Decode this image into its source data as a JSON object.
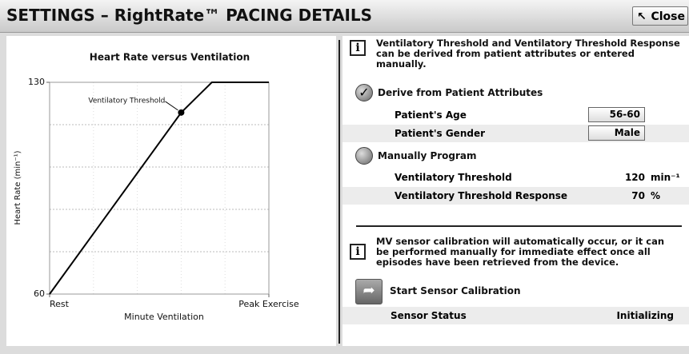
{
  "header": {
    "title": "SETTINGS – RightRate™ PACING DETAILS",
    "close": "Close"
  },
  "chart_data": {
    "type": "line",
    "title": "Heart Rate versus Ventilation",
    "y_label": "Heart Rate (min⁻¹)",
    "x_label": "Minute Ventilation",
    "annotation": "Ventilatory Threshold",
    "x": [
      0,
      60,
      74,
      100
    ],
    "series": [
      {
        "color": "#000000",
        "values": [
          60,
          120,
          130,
          130
        ]
      }
    ],
    "xlim": [
      0,
      100
    ],
    "xticks": [
      {
        "value": 0,
        "label": "Rest"
      },
      {
        "value": 100,
        "label": "Peak Exercise"
      }
    ],
    "ylim": [
      60,
      130
    ],
    "yticks": [
      60,
      130
    ],
    "ygrid": [
      74,
      88,
      102,
      116
    ],
    "xgrid": [
      20,
      40,
      60,
      80
    ],
    "grid": true
  },
  "pacing": {
    "info": "Ventilatory Threshold and Ventilatory Threshold Response can be derived from patient attributes or entered manually.",
    "derive": {
      "label": "Derive from Patient Attributes",
      "rows": [
        {
          "label": "Patient's Age",
          "value": "56-60"
        },
        {
          "label": "Patient's Gender",
          "value": "Male"
        }
      ]
    },
    "manual": {
      "label": "Manually Program",
      "rows": [
        {
          "label": "Ventilatory Threshold",
          "value": 120,
          "unit": "min⁻¹"
        },
        {
          "label": "Ventilatory Threshold Response",
          "value": 70,
          "unit": "%"
        }
      ]
    }
  },
  "calibration": {
    "info": "MV sensor calibration will automatically occur, or it can be performed manually for immediate effect once all episodes have been retrieved from the device.",
    "button": "Start Sensor Calibration",
    "status_label": "Sensor Status",
    "status": "Initializing"
  }
}
